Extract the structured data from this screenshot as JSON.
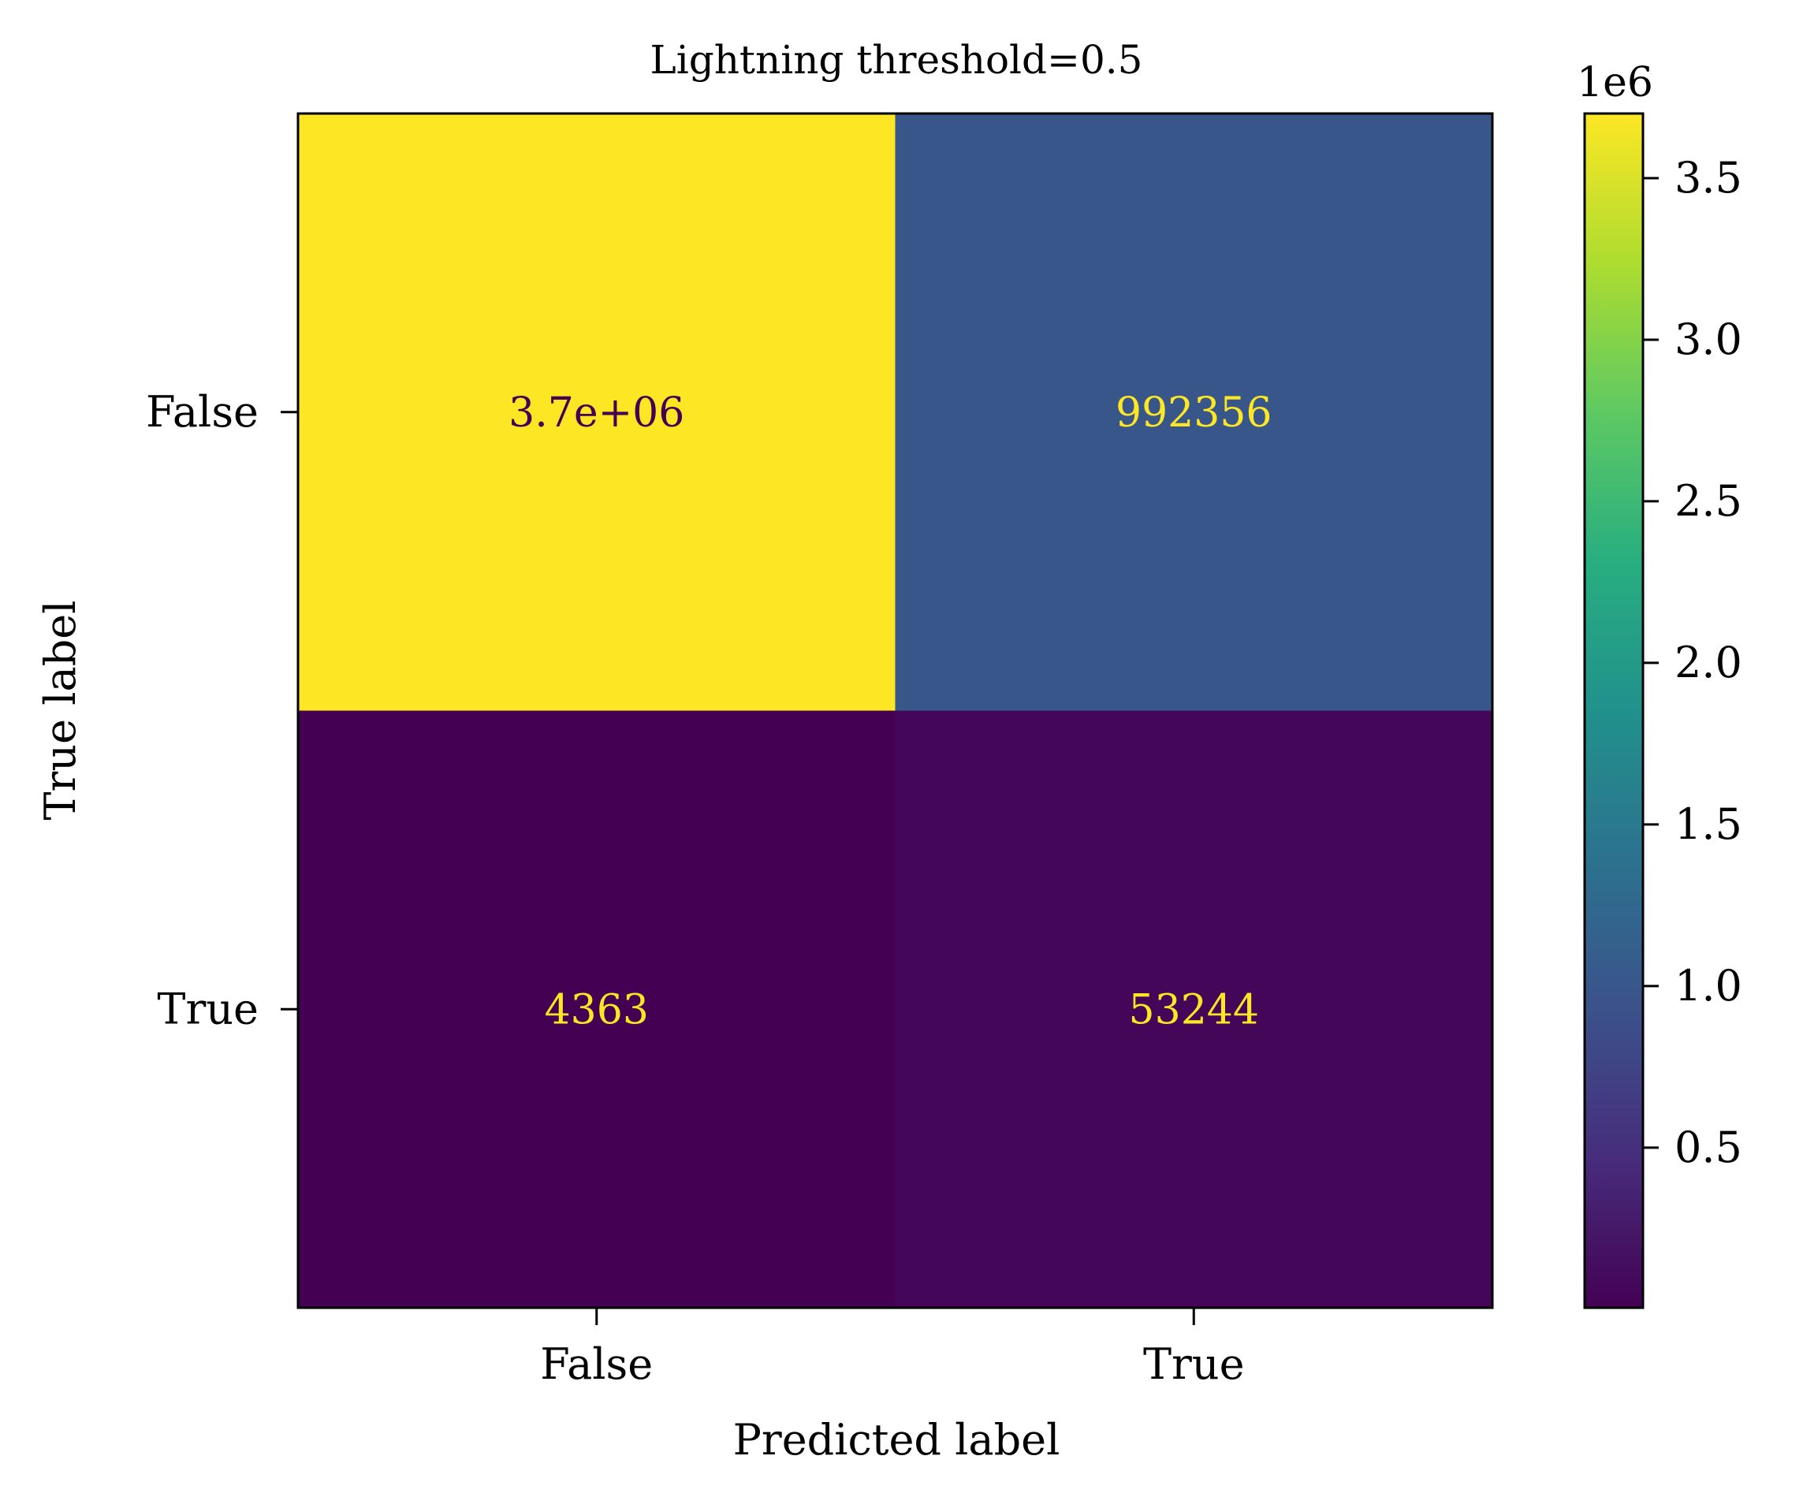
{
  "chart_data": {
    "type": "heatmap",
    "title": "Lightning threshold=0.5",
    "xlabel": "Predicted label",
    "ylabel": "True label",
    "x_categories": [
      "False",
      "True"
    ],
    "y_categories": [
      "False",
      "True"
    ],
    "values": [
      [
        3700000,
        992356
      ],
      [
        4363,
        53244
      ]
    ],
    "cell_labels": [
      [
        "3.7e+06",
        "992356"
      ],
      [
        "4363",
        "53244"
      ]
    ],
    "colormap": "viridis",
    "colorbar": {
      "range": [
        4363,
        3700000
      ],
      "ticks": [
        0.5,
        1.0,
        1.5,
        2.0,
        2.5,
        3.0,
        3.5
      ],
      "tick_labels": [
        "0.5",
        "1.0",
        "1.5",
        "2.0",
        "2.5",
        "3.0",
        "3.5"
      ],
      "scale_label": "1e6",
      "tick_scale": 1000000
    },
    "grid": false
  }
}
